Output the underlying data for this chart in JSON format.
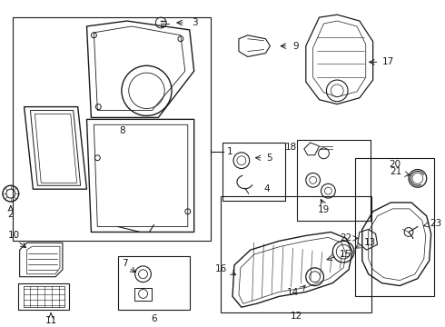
{
  "background_color": "#ffffff",
  "line_color": "#1a1a1a",
  "fig_width": 4.9,
  "fig_height": 3.6,
  "dpi": 100,
  "font_size": 7.5
}
